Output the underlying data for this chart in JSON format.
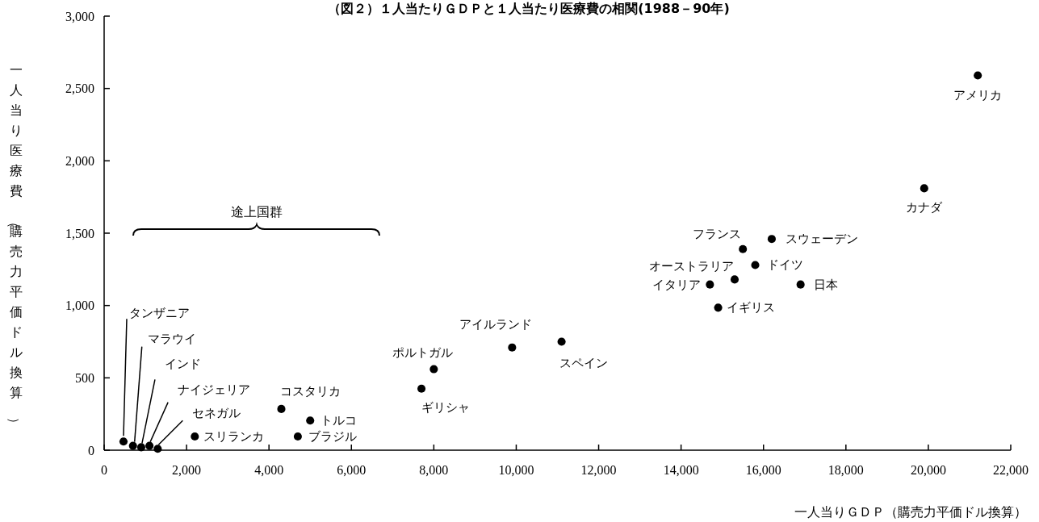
{
  "chart_data": {
    "type": "scatter",
    "title": "（図２）１人当たりＧＤＰと１人当たり医療費の相関(1988－90年)",
    "xlabel": "一人当りＧＤＰ（購売力平価ドル換算）",
    "ylabel": "一人当り医療費（購売力平価ドル換算）",
    "series": [
      {
        "color": "#000000",
        "x": [
          470,
          700,
          900,
          1100,
          1300,
          2200,
          4300,
          5000,
          4700,
          7700,
          8000,
          9900,
          11100,
          15500,
          16200,
          15800,
          15300,
          14700,
          16900,
          14900,
          19900,
          21200
        ],
        "values": [
          60,
          30,
          20,
          30,
          10,
          95,
          285,
          205,
          95,
          425,
          560,
          710,
          750,
          1390,
          1460,
          1280,
          1180,
          1145,
          1145,
          985,
          1810,
          2590
        ]
      }
    ],
    "annotations": [
      {
        "text": "タンザニア",
        "x": 470,
        "y": 60
      },
      {
        "text": "マラウイ",
        "x": 700,
        "y": 30
      },
      {
        "text": "インド",
        "x": 900,
        "y": 20
      },
      {
        "text": "ナイジェリア",
        "x": 1100,
        "y": 30
      },
      {
        "text": "セネガル",
        "x": 1300,
        "y": 10
      },
      {
        "text": "スリランカ",
        "x": 2200,
        "y": 95
      },
      {
        "text": "コスタリカ",
        "x": 4300,
        "y": 285
      },
      {
        "text": "トルコ",
        "x": 5000,
        "y": 205
      },
      {
        "text": "ブラジル",
        "x": 4700,
        "y": 95
      },
      {
        "text": "ギリシャ",
        "x": 7700,
        "y": 425
      },
      {
        "text": "ポルトガル",
        "x": 8000,
        "y": 560
      },
      {
        "text": "アイルランド",
        "x": 9900,
        "y": 710
      },
      {
        "text": "スペイン",
        "x": 11100,
        "y": 750
      },
      {
        "text": "フランス",
        "x": 15500,
        "y": 1390
      },
      {
        "text": "スウェーデン",
        "x": 16200,
        "y": 1460
      },
      {
        "text": "ドイツ",
        "x": 15800,
        "y": 1280
      },
      {
        "text": "オーストラリア",
        "x": 15300,
        "y": 1180
      },
      {
        "text": "イタリア",
        "x": 14700,
        "y": 1145
      },
      {
        "text": "日本",
        "x": 16900,
        "y": 1145
      },
      {
        "text": "イギリス",
        "x": 14900,
        "y": 985
      },
      {
        "text": "カナダ",
        "x": 19900,
        "y": 1810
      },
      {
        "text": "アメリカ",
        "x": 21200,
        "y": 2590
      },
      "途上国群"
    ],
    "xlim": [
      0,
      22000
    ],
    "ylim": [
      0,
      3000
    ],
    "xticks": [
      0,
      {
        "value": 2000,
        "label": "2,000"
      },
      {
        "value": 4000,
        "label": "4,000"
      },
      {
        "value": 6000,
        "label": "6,000"
      },
      {
        "value": 8000,
        "label": "8,000"
      },
      {
        "value": 10000,
        "label": "10,000"
      },
      {
        "value": 12000,
        "label": "12,000"
      },
      {
        "value": 14000,
        "label": "14,000"
      },
      {
        "value": 16000,
        "label": "16,000"
      },
      {
        "value": 18000,
        "label": "18,000"
      },
      {
        "value": 20000,
        "label": "20,000"
      },
      {
        "value": 22000,
        "label": "22,000"
      }
    ],
    "yticks": [
      0,
      {
        "value": 500,
        "label": "500"
      },
      {
        "value": 1000,
        "label": "1,000"
      },
      {
        "value": 1500,
        "label": "1,500"
      },
      {
        "value": 2000,
        "label": "2,000"
      },
      {
        "value": 2500,
        "label": "2,500"
      },
      {
        "value": 3000,
        "label": "3,000"
      }
    ],
    "marker": "circle",
    "grid": false
  }
}
